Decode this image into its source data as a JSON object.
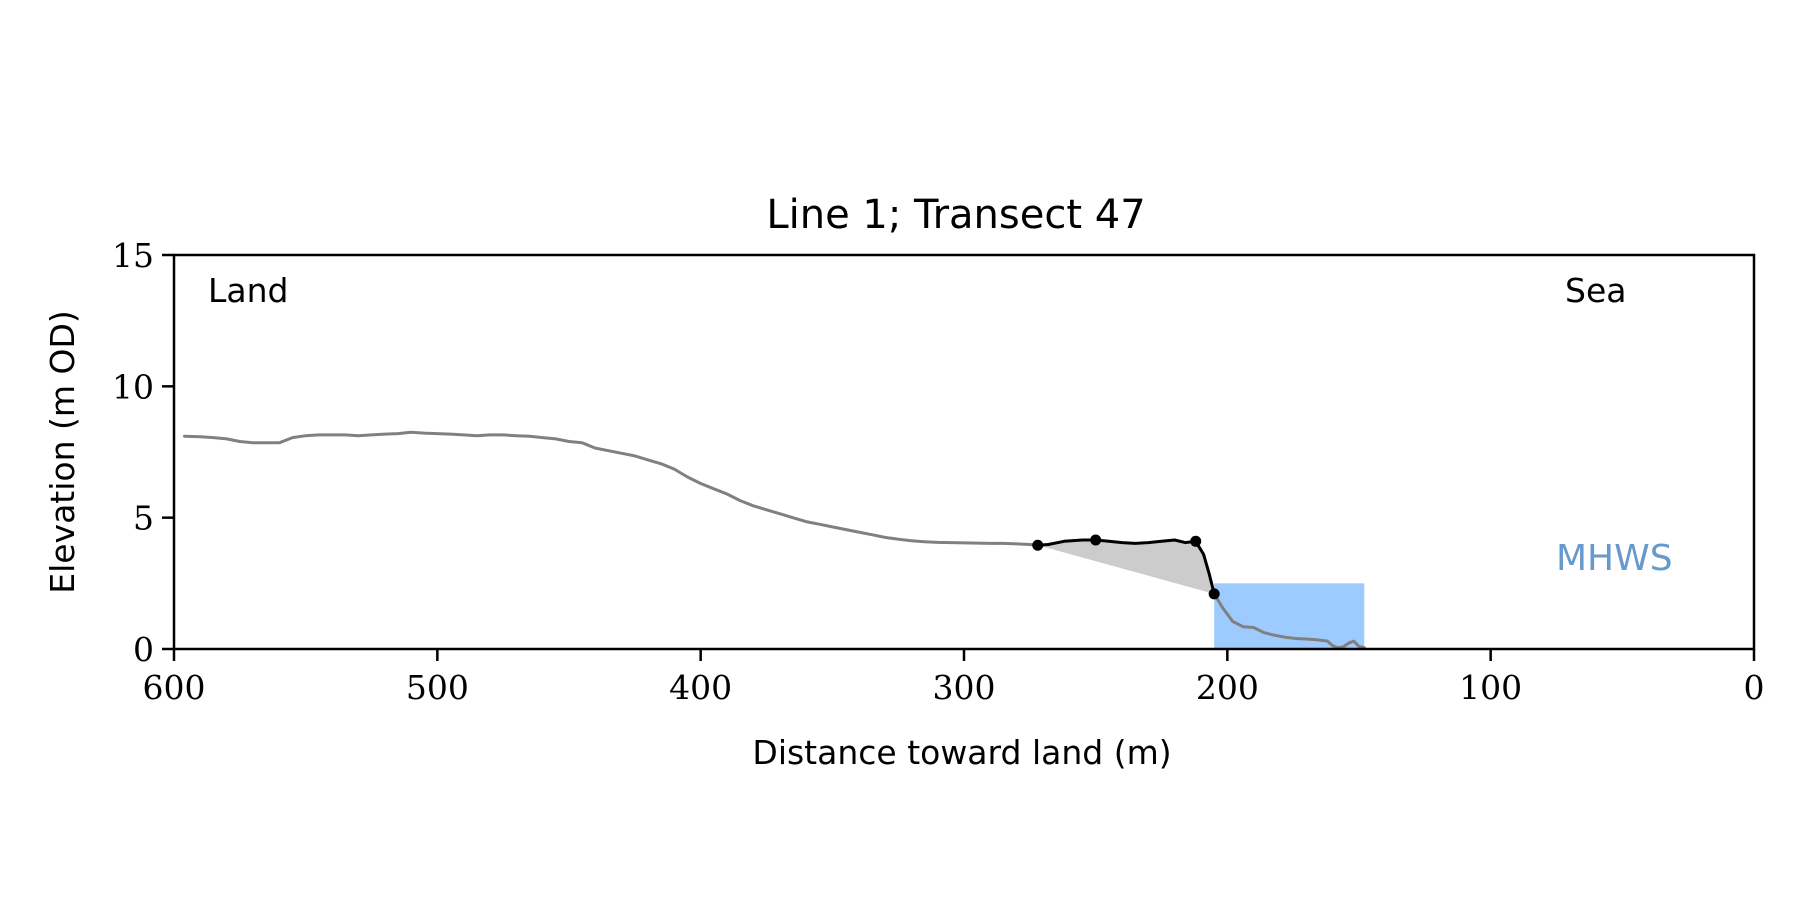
{
  "chart_data": {
    "type": "line",
    "title": "Line 1; Transect 47",
    "xlabel": "Distance toward land (m)",
    "ylabel": "Elevation (m OD)",
    "xlim": [
      600,
      0
    ],
    "ylim": [
      0,
      15
    ],
    "x_ticks": [
      600,
      500,
      400,
      300,
      200,
      100,
      0
    ],
    "y_ticks": [
      0,
      5,
      10,
      15
    ],
    "grid": false,
    "annotations": {
      "land": "Land",
      "sea": "Sea",
      "mhws": "MHWS"
    },
    "mhws_elevation": 2.5,
    "mhws_extent": [
      205,
      148
    ],
    "colors": {
      "profile": "#808080",
      "feature": "#000000",
      "fill": "#cccccc",
      "water": "#9ecbff",
      "mhws_text": "#6699cc"
    },
    "series": [
      {
        "values_x": [
          596,
          590,
          585,
          580,
          575,
          570,
          565,
          560,
          555,
          550,
          545,
          540,
          535,
          530,
          525,
          520,
          515,
          510,
          505,
          500,
          495,
          490,
          485,
          480,
          475,
          470,
          465,
          460,
          455,
          450,
          445,
          440,
          435,
          430,
          425,
          420,
          415,
          410,
          405,
          400,
          395,
          390,
          385,
          380,
          375,
          370,
          365,
          360,
          355,
          350,
          345,
          340,
          335,
          330,
          325,
          320,
          315,
          310,
          305,
          300,
          295,
          290,
          285,
          280,
          275,
          272
        ],
        "values_y": [
          8.1,
          8.08,
          8.05,
          8.0,
          7.9,
          7.85,
          7.85,
          7.85,
          8.05,
          8.12,
          8.15,
          8.15,
          8.15,
          8.12,
          8.15,
          8.18,
          8.2,
          8.25,
          8.22,
          8.2,
          8.18,
          8.15,
          8.12,
          8.15,
          8.15,
          8.12,
          8.1,
          8.05,
          8.0,
          7.9,
          7.85,
          7.65,
          7.55,
          7.45,
          7.35,
          7.2,
          7.05,
          6.85,
          6.55,
          6.3,
          6.1,
          5.9,
          5.65,
          5.45,
          5.3,
          5.15,
          5.0,
          4.85,
          4.75,
          4.65,
          4.55,
          4.45,
          4.35,
          4.25,
          4.18,
          4.12,
          4.08,
          4.06,
          4.05,
          4.04,
          4.03,
          4.02,
          4.02,
          4.0,
          3.98,
          3.95
        ]
      },
      {
        "values_x": [
          272,
          268,
          262,
          255,
          250,
          245,
          240,
          235,
          230,
          225,
          220,
          216,
          212,
          209,
          207,
          205
        ],
        "values_y": [
          3.95,
          3.98,
          4.1,
          4.15,
          4.15,
          4.1,
          4.05,
          4.02,
          4.05,
          4.1,
          4.15,
          4.05,
          4.1,
          3.6,
          2.9,
          2.1
        ]
      },
      {
        "values_x": [
          205,
          202,
          198,
          194,
          190,
          186,
          182,
          178,
          174,
          170,
          166,
          162,
          160,
          158,
          156,
          154,
          152,
          150,
          148
        ],
        "values_y": [
          2.1,
          1.6,
          1.05,
          0.85,
          0.82,
          0.62,
          0.52,
          0.45,
          0.4,
          0.38,
          0.35,
          0.3,
          0.12,
          0.05,
          0.08,
          0.22,
          0.3,
          0.1,
          0.05
        ]
      }
    ],
    "markers": [
      {
        "x": 272,
        "y": 3.95
      },
      {
        "x": 250,
        "y": 4.15
      },
      {
        "x": 212,
        "y": 4.1
      },
      {
        "x": 205,
        "y": 2.1
      }
    ],
    "fill_polygon": {
      "x": [
        272,
        268,
        262,
        255,
        250,
        245,
        240,
        235,
        230,
        225,
        220,
        216,
        212,
        209,
        207,
        205
      ],
      "y": [
        3.95,
        3.98,
        4.1,
        4.15,
        4.15,
        4.1,
        4.05,
        4.02,
        4.05,
        4.1,
        4.15,
        4.05,
        4.1,
        3.6,
        2.9,
        2.1
      ]
    }
  }
}
